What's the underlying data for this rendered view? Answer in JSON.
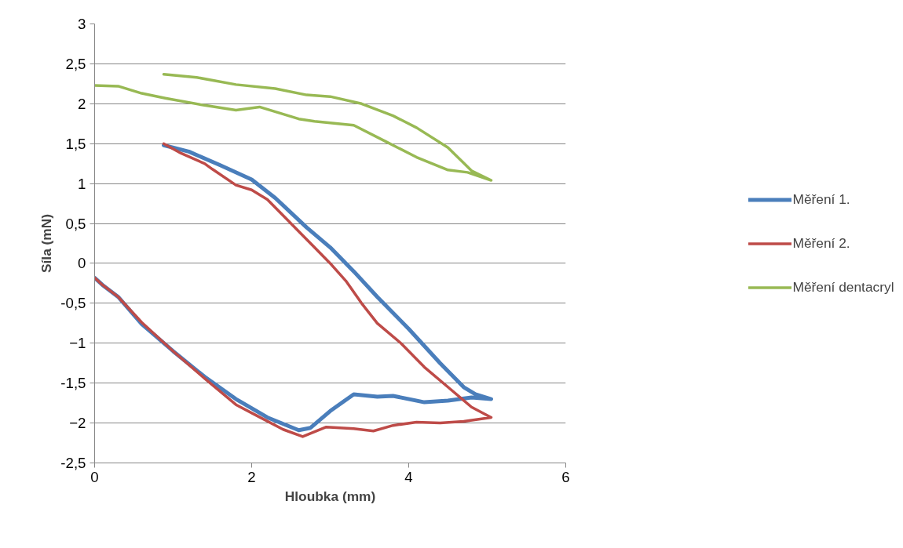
{
  "chart_data": {
    "type": "line",
    "xlabel": "Hloubka (mm)",
    "ylabel": "Síla (mN)",
    "xlim": [
      0,
      6
    ],
    "xticks": [
      0,
      2,
      4,
      6
    ],
    "ylim": [
      -2.5,
      3
    ],
    "yticks": [
      {
        "value": -2.5,
        "label": "-2,5"
      },
      -2,
      {
        "value": -1.5,
        "label": "-1,5"
      },
      -1,
      {
        "value": -0.5,
        "label": "-0,5"
      },
      0,
      {
        "value": 0.5,
        "label": "0,5"
      },
      1,
      {
        "value": 1.5,
        "label": "1,5"
      },
      2,
      {
        "value": 2.5,
        "label": "2,5"
      },
      3
    ],
    "grid": "y",
    "legend": "right",
    "marker": "none",
    "line_style": "solid",
    "series": [
      {
        "name": "Měření 1.",
        "color": "#4a7ebb",
        "x": [
          0.88,
          1.2,
          1.6,
          2.0,
          2.3,
          2.7,
          3.0,
          3.3,
          3.6,
          4.0,
          4.4,
          4.7,
          4.85,
          5.05,
          4.8,
          4.5,
          4.2,
          3.8,
          3.6,
          3.3,
          3.0,
          2.75,
          2.6,
          2.2,
          1.8,
          1.4,
          1.0,
          0.6,
          0.3,
          0.1,
          0
        ],
        "values": [
          1.48,
          1.4,
          1.23,
          1.05,
          0.82,
          0.45,
          0.2,
          -0.1,
          -0.42,
          -0.82,
          -1.25,
          -1.55,
          -1.64,
          -1.7,
          -1.68,
          -1.72,
          -1.74,
          -1.66,
          -1.67,
          -1.64,
          -1.85,
          -2.06,
          -2.09,
          -1.93,
          -1.7,
          -1.42,
          -1.1,
          -0.76,
          -0.42,
          -0.27,
          -0.18
        ]
      },
      {
        "name": "Měření 2.",
        "color": "#be4b48",
        "x": [
          0.88,
          1.1,
          1.4,
          1.5,
          1.8,
          2.0,
          2.2,
          2.5,
          2.8,
          3.0,
          3.2,
          3.4,
          3.6,
          3.9,
          4.2,
          4.5,
          4.8,
          5.05,
          4.7,
          4.4,
          4.1,
          3.8,
          3.55,
          3.3,
          2.95,
          2.65,
          2.4,
          2.05,
          1.8,
          1.4,
          1.0,
          0.6,
          0.3,
          0.1,
          0
        ],
        "values": [
          1.5,
          1.38,
          1.25,
          1.18,
          0.98,
          0.92,
          0.8,
          0.5,
          0.2,
          0.0,
          -0.22,
          -0.5,
          -0.75,
          -1.0,
          -1.3,
          -1.55,
          -1.8,
          -1.93,
          -1.98,
          -2.0,
          -1.99,
          -2.03,
          -2.1,
          -2.07,
          -2.05,
          -2.17,
          -2.08,
          -1.9,
          -1.77,
          -1.44,
          -1.1,
          -0.74,
          -0.42,
          -0.27,
          -0.18
        ]
      },
      {
        "name": "Měření dentacryl",
        "color": "#98b954",
        "x": [
          0.88,
          1.3,
          1.8,
          2.3,
          2.7,
          3.0,
          3.4,
          3.8,
          4.1,
          4.5,
          4.8,
          5.05,
          4.75,
          4.5,
          4.1,
          3.7,
          3.3,
          2.8,
          2.6,
          2.1,
          1.8,
          1.4,
          0.9,
          0.6,
          0.3,
          0
        ],
        "values": [
          2.37,
          2.33,
          2.24,
          2.19,
          2.11,
          2.09,
          2.0,
          1.85,
          1.7,
          1.45,
          1.16,
          1.04,
          1.14,
          1.17,
          1.33,
          1.53,
          1.73,
          1.78,
          1.81,
          1.96,
          1.92,
          1.98,
          2.07,
          2.13,
          2.22,
          2.23
        ]
      }
    ]
  }
}
